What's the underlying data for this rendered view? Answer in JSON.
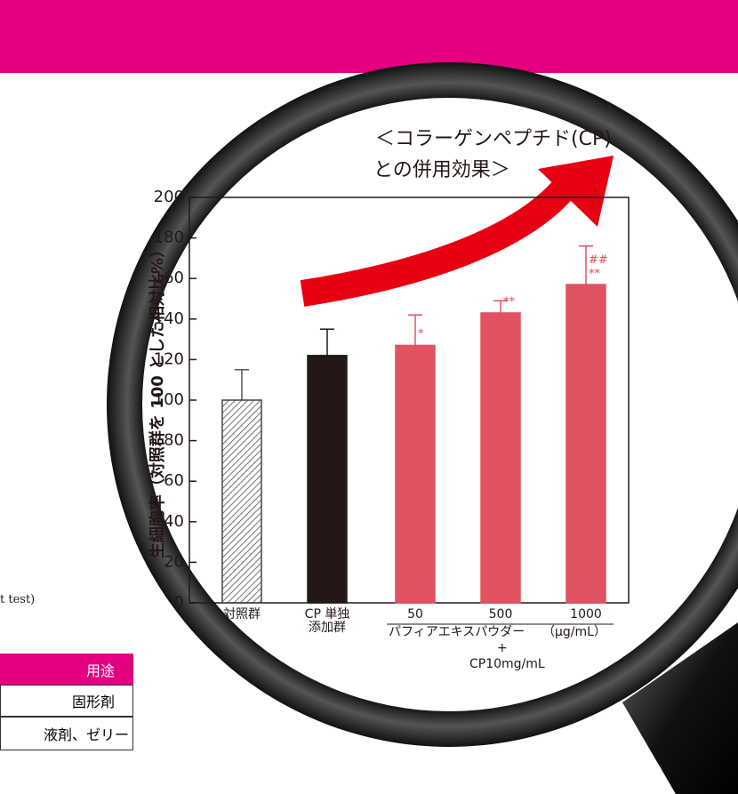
{
  "chart_data": {
    "type": "bar",
    "title": [
      "＜コラーゲンペプチド(CP)",
      "との併用効果＞"
    ],
    "y_label": "生細胞率（対照群を 100 とした相対比%）",
    "categories": [
      "対照群",
      "CP 単独\n添加群",
      "50",
      "500",
      "1000"
    ],
    "x_unit": "（μg/mL）",
    "x_group": [
      "パフィアエキスパウダー",
      "+",
      "CP10mg/mL"
    ],
    "values": [
      100,
      122,
      127,
      143,
      157
    ],
    "errors": [
      15,
      13,
      15,
      6,
      19
    ],
    "value_annotations": [
      null,
      null,
      "*",
      "**",
      "##\n**"
    ],
    "colors": [
      "#ffffff",
      "#231815",
      "#e05260",
      "#e05260",
      "#e05260"
    ],
    "hatched": [
      true,
      false,
      false,
      false,
      false
    ],
    "ylim": [
      0,
      200
    ],
    "yticks": [
      0,
      20,
      40,
      60,
      80,
      100,
      120,
      140,
      160,
      180,
      200
    ]
  },
  "note": "t test)",
  "table": {
    "header": "用途",
    "rows": [
      "固形剤",
      "液剤、ゼリー"
    ]
  }
}
